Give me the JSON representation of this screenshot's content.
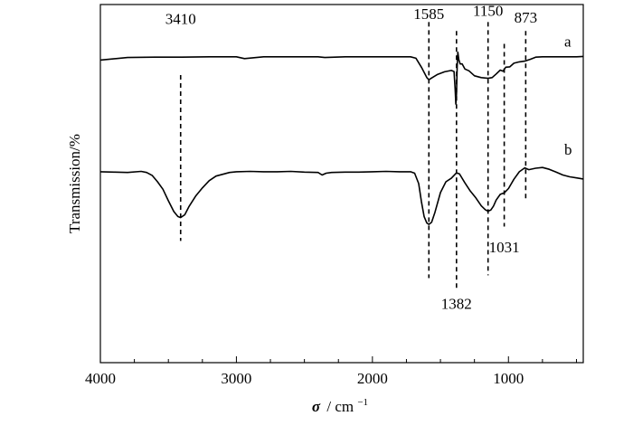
{
  "chart_data": {
    "type": "line",
    "title": "",
    "xlabel": "σ / cm⁻¹",
    "xlabel_parts": {
      "symbol": "σ",
      "unit": "/ cm",
      "exponent": "−1"
    },
    "ylabel": "Transmission/%",
    "xlim": [
      4000,
      450
    ],
    "x_reversed": true,
    "ylim": [
      0,
      100
    ],
    "y_ticks_labeled": false,
    "x_ticks": [
      4000,
      3000,
      2000,
      1000
    ],
    "x_tick_labels": [
      "4000",
      "3000",
      "2000",
      "1000"
    ],
    "grid": false,
    "series": [
      {
        "name": "a",
        "points": [
          [
            4000,
            84.5
          ],
          [
            3800,
            85.2
          ],
          [
            3600,
            85.3
          ],
          [
            3400,
            85.3
          ],
          [
            3200,
            85.4
          ],
          [
            3000,
            85.4
          ],
          [
            2940,
            84.9
          ],
          [
            2800,
            85.4
          ],
          [
            2600,
            85.4
          ],
          [
            2400,
            85.4
          ],
          [
            2350,
            85.2
          ],
          [
            2200,
            85.4
          ],
          [
            2000,
            85.4
          ],
          [
            1800,
            85.4
          ],
          [
            1720,
            85.4
          ],
          [
            1680,
            85.0
          ],
          [
            1640,
            82.5
          ],
          [
            1600,
            79.6
          ],
          [
            1585,
            79.0
          ],
          [
            1560,
            79.6
          ],
          [
            1520,
            80.5
          ],
          [
            1470,
            81.2
          ],
          [
            1420,
            81.6
          ],
          [
            1400,
            81.3
          ],
          [
            1392,
            76.5
          ],
          [
            1387,
            72.2
          ],
          [
            1382,
            75.0
          ],
          [
            1377,
            82.8
          ],
          [
            1372,
            86.7
          ],
          [
            1365,
            84.6
          ],
          [
            1355,
            83.4
          ],
          [
            1340,
            83.4
          ],
          [
            1320,
            82.0
          ],
          [
            1290,
            81.5
          ],
          [
            1250,
            80.1
          ],
          [
            1200,
            79.6
          ],
          [
            1150,
            79.4
          ],
          [
            1120,
            79.6
          ],
          [
            1090,
            80.6
          ],
          [
            1060,
            81.7
          ],
          [
            1040,
            81.4
          ],
          [
            1020,
            82.5
          ],
          [
            990,
            82.6
          ],
          [
            960,
            83.6
          ],
          [
            920,
            84.0
          ],
          [
            880,
            84.2
          ],
          [
            840,
            84.7
          ],
          [
            800,
            85.3
          ],
          [
            750,
            85.4
          ],
          [
            700,
            85.4
          ],
          [
            600,
            85.4
          ],
          [
            500,
            85.4
          ],
          [
            450,
            85.5
          ]
        ]
      },
      {
        "name": "b",
        "points": [
          [
            4000,
            53.3
          ],
          [
            3900,
            53.2
          ],
          [
            3800,
            53.1
          ],
          [
            3700,
            53.4
          ],
          [
            3660,
            53.1
          ],
          [
            3620,
            52.3
          ],
          [
            3580,
            50.5
          ],
          [
            3540,
            48.4
          ],
          [
            3500,
            45.2
          ],
          [
            3460,
            42.2
          ],
          [
            3430,
            40.8
          ],
          [
            3410,
            40.5
          ],
          [
            3380,
            41.3
          ],
          [
            3350,
            43.5
          ],
          [
            3300,
            46.5
          ],
          [
            3250,
            48.8
          ],
          [
            3200,
            50.8
          ],
          [
            3150,
            52.1
          ],
          [
            3100,
            52.6
          ],
          [
            3050,
            53.1
          ],
          [
            3000,
            53.3
          ],
          [
            2900,
            53.4
          ],
          [
            2800,
            53.3
          ],
          [
            2700,
            53.3
          ],
          [
            2600,
            53.4
          ],
          [
            2500,
            53.2
          ],
          [
            2400,
            53.1
          ],
          [
            2370,
            52.4
          ],
          [
            2340,
            52.9
          ],
          [
            2300,
            53.1
          ],
          [
            2200,
            53.2
          ],
          [
            2100,
            53.2
          ],
          [
            2000,
            53.3
          ],
          [
            1900,
            53.4
          ],
          [
            1800,
            53.3
          ],
          [
            1720,
            53.3
          ],
          [
            1690,
            52.9
          ],
          [
            1660,
            50.0
          ],
          [
            1640,
            45.0
          ],
          [
            1620,
            40.8
          ],
          [
            1600,
            39.0
          ],
          [
            1585,
            38.6
          ],
          [
            1565,
            39.2
          ],
          [
            1540,
            42.0
          ],
          [
            1500,
            47.5
          ],
          [
            1460,
            50.5
          ],
          [
            1420,
            51.5
          ],
          [
            1400,
            52.3
          ],
          [
            1382,
            53.0
          ],
          [
            1360,
            52.7
          ],
          [
            1320,
            50.2
          ],
          [
            1280,
            47.9
          ],
          [
            1240,
            46.0
          ],
          [
            1200,
            43.8
          ],
          [
            1170,
            42.7
          ],
          [
            1150,
            42.3
          ],
          [
            1130,
            42.6
          ],
          [
            1110,
            43.7
          ],
          [
            1090,
            45.4
          ],
          [
            1060,
            47.0
          ],
          [
            1031,
            47.4
          ],
          [
            1000,
            48.6
          ],
          [
            960,
            51.2
          ],
          [
            920,
            53.3
          ],
          [
            880,
            54.4
          ],
          [
            850,
            53.9
          ],
          [
            800,
            54.3
          ],
          [
            750,
            54.5
          ],
          [
            700,
            54.0
          ],
          [
            650,
            53.2
          ],
          [
            600,
            52.4
          ],
          [
            550,
            51.9
          ],
          [
            500,
            51.6
          ],
          [
            450,
            51.3
          ]
        ]
      }
    ],
    "series_labels": [
      {
        "text": "a",
        "x": 590,
        "y": 88.3
      },
      {
        "text": "b",
        "x": 590,
        "y": 58.1
      }
    ],
    "annotations": [
      {
        "label": "3410",
        "x": 3410,
        "y_top": 80.3,
        "y_bottom": 34.0,
        "label_y": 94.6,
        "label_side": "top"
      },
      {
        "label": "1585",
        "x": 1585,
        "y_top": 95.1,
        "y_bottom": 23.6,
        "label_y": 96.0,
        "label_side": "top"
      },
      {
        "label": "1382",
        "x": 1382,
        "y_top": 92.6,
        "y_bottom": 20.5,
        "label_y": 15.0,
        "label_side": "bottom"
      },
      {
        "label": "1150",
        "x": 1150,
        "y_top": 95.1,
        "y_bottom": 24.4,
        "label_y": 96.8,
        "label_side": "top"
      },
      {
        "label": "1031",
        "x": 1031,
        "y_top": 89.0,
        "y_bottom": 38.0,
        "label_y": 30.8,
        "label_side": "bottom"
      },
      {
        "label": "873",
        "x": 873,
        "y_top": 92.6,
        "y_bottom": 45.6,
        "label_y": 95.0,
        "label_side": "top"
      }
    ]
  }
}
